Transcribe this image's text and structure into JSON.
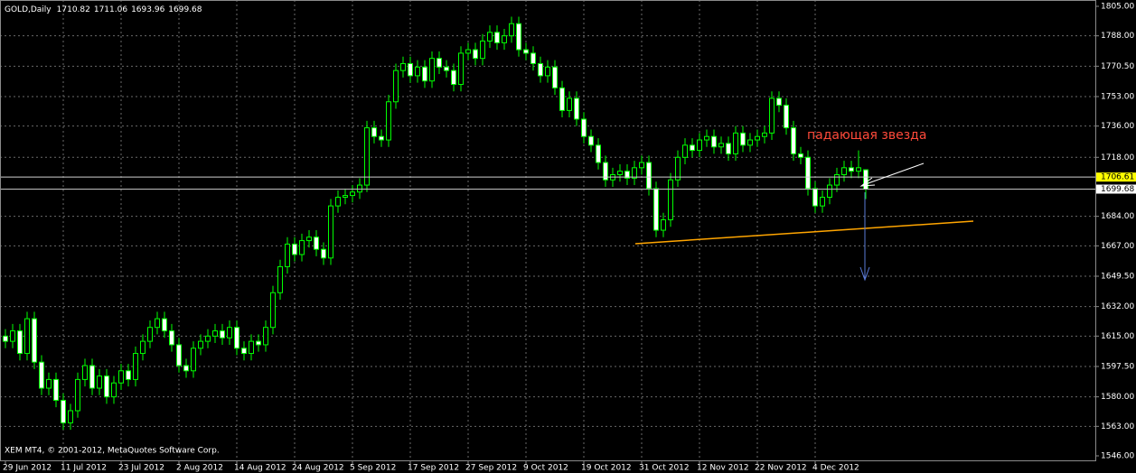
{
  "chart_data": {
    "type": "candlestick",
    "symbol": "GOLD,Daily",
    "copyright": "XEM MT4, © 2001-2012, MetaQuotes Software Corp.",
    "annotation": "падающая звезда",
    "categories": [
      "29 Jun 2012",
      null,
      null,
      null,
      null,
      null,
      null,
      null,
      "11 Jul 2012",
      null,
      null,
      null,
      null,
      null,
      null,
      null,
      "23 Jul 2012",
      null,
      null,
      null,
      null,
      null,
      null,
      null,
      "2 Aug 2012",
      null,
      null,
      null,
      null,
      null,
      null,
      null,
      "14 Aug 2012",
      null,
      null,
      null,
      null,
      null,
      null,
      null,
      "24 Aug 2012",
      null,
      null,
      null,
      null,
      null,
      null,
      null,
      "5 Sep 2012",
      null,
      null,
      null,
      null,
      null,
      null,
      null,
      "17 Sep 2012",
      null,
      null,
      null,
      null,
      null,
      null,
      null,
      "27 Sep 2012",
      null,
      null,
      null,
      null,
      null,
      null,
      null,
      "9 Oct 2012",
      null,
      null,
      null,
      null,
      null,
      null,
      null,
      "19 Oct 2012",
      null,
      null,
      null,
      null,
      null,
      null,
      null,
      "31 Oct 2012",
      null,
      null,
      null,
      null,
      null,
      null,
      null,
      "12 Nov 2012",
      null,
      null,
      null,
      null,
      null,
      null,
      null,
      "22 Nov 2012",
      null,
      null,
      null,
      null,
      null,
      null,
      null,
      "4 Dec 2012",
      null,
      null,
      null,
      null,
      null,
      null,
      null
    ],
    "open": [
      1615,
      1612,
      1618,
      1605,
      1625,
      1600,
      1585,
      1590,
      1578,
      1565,
      1572,
      1590,
      1598,
      1585,
      1592,
      1580,
      1588,
      1595,
      1590,
      1605,
      1612,
      1620,
      1625,
      1618,
      1610,
      1598,
      1595,
      1608,
      1612,
      1615,
      1618,
      1614,
      1620,
      1608,
      1605,
      1612,
      1610,
      1620,
      1640,
      1655,
      1668,
      1662,
      1670,
      1672,
      1665,
      1660,
      1690,
      1695,
      1696,
      1698,
      1702,
      1735,
      1730,
      1728,
      1750,
      1768,
      1772,
      1765,
      1770,
      1762,
      1775,
      1770,
      1768,
      1760,
      1778,
      1780,
      1775,
      1785,
      1790,
      1784,
      1788,
      1795,
      1780,
      1778,
      1772,
      1765,
      1770,
      1758,
      1745,
      1752,
      1740,
      1730,
      1725,
      1715,
      1705,
      1708,
      1710,
      1706,
      1712,
      1715,
      1700,
      1676,
      1682,
      1705,
      1718,
      1725,
      1722,
      1728,
      1730,
      1724,
      1726,
      1720,
      1732,
      1725,
      1728,
      1730,
      1732,
      1752,
      1748,
      1735,
      1720,
      1718,
      1700,
      1690,
      1695,
      1702,
      1708,
      1712,
      1710,
      1710.82
    ],
    "high": [
      1619,
      1622,
      1622,
      1629,
      1629,
      1604,
      1594,
      1594,
      1582,
      1576,
      1594,
      1602,
      1602,
      1596,
      1596,
      1592,
      1599,
      1599,
      1609,
      1616,
      1624,
      1629,
      1629,
      1622,
      1614,
      1602,
      1612,
      1616,
      1619,
      1622,
      1622,
      1624,
      1624,
      1612,
      1616,
      1616,
      1624,
      1644,
      1659,
      1672,
      1672,
      1674,
      1676,
      1676,
      1669,
      1694,
      1699,
      1700,
      1702,
      1706,
      1739,
      1739,
      1734,
      1754,
      1772,
      1776,
      1776,
      1774,
      1774,
      1779,
      1779,
      1774,
      1772,
      1782,
      1784,
      1784,
      1789,
      1794,
      1794,
      1792,
      1799,
      1799,
      1784,
      1782,
      1776,
      1774,
      1774,
      1762,
      1756,
      1756,
      1744,
      1734,
      1729,
      1719,
      1712,
      1714,
      1714,
      1716,
      1719,
      1719,
      1704,
      1686,
      1709,
      1722,
      1729,
      1729,
      1732,
      1734,
      1734,
      1730,
      1730,
      1736,
      1736,
      1732,
      1734,
      1736,
      1756,
      1756,
      1752,
      1739,
      1724,
      1722,
      1704,
      1699,
      1706,
      1712,
      1716,
      1716,
      1722,
      1711.06
    ],
    "low": [
      1608,
      1608,
      1601,
      1601,
      1596,
      1581,
      1581,
      1574,
      1561,
      1561,
      1568,
      1586,
      1581,
      1581,
      1576,
      1576,
      1584,
      1586,
      1586,
      1601,
      1608,
      1616,
      1614,
      1606,
      1594,
      1591,
      1591,
      1604,
      1608,
      1611,
      1610,
      1610,
      1604,
      1601,
      1601,
      1606,
      1606,
      1616,
      1636,
      1651,
      1658,
      1658,
      1666,
      1661,
      1656,
      1656,
      1686,
      1691,
      1692,
      1694,
      1698,
      1726,
      1724,
      1724,
      1746,
      1764,
      1761,
      1761,
      1758,
      1758,
      1766,
      1764,
      1756,
      1756,
      1774,
      1771,
      1771,
      1781,
      1780,
      1780,
      1784,
      1776,
      1774,
      1768,
      1761,
      1761,
      1754,
      1741,
      1741,
      1736,
      1726,
      1721,
      1711,
      1701,
      1701,
      1704,
      1702,
      1702,
      1708,
      1696,
      1672,
      1672,
      1678,
      1701,
      1714,
      1718,
      1718,
      1724,
      1720,
      1720,
      1716,
      1716,
      1721,
      1721,
      1724,
      1726,
      1728,
      1744,
      1731,
      1716,
      1714,
      1696,
      1686,
      1686,
      1691,
      1698,
      1704,
      1706,
      1706,
      1693.96
    ],
    "close": [
      1612,
      1618,
      1605,
      1625,
      1600,
      1585,
      1590,
      1578,
      1565,
      1572,
      1590,
      1598,
      1585,
      1592,
      1580,
      1588,
      1595,
      1590,
      1605,
      1612,
      1620,
      1625,
      1618,
      1610,
      1598,
      1595,
      1608,
      1612,
      1615,
      1618,
      1614,
      1620,
      1608,
      1605,
      1612,
      1610,
      1620,
      1640,
      1655,
      1668,
      1662,
      1670,
      1672,
      1665,
      1660,
      1690,
      1695,
      1696,
      1698,
      1702,
      1735,
      1730,
      1728,
      1750,
      1768,
      1772,
      1765,
      1770,
      1762,
      1775,
      1770,
      1768,
      1760,
      1778,
      1780,
      1775,
      1785,
      1790,
      1784,
      1788,
      1795,
      1780,
      1778,
      1772,
      1765,
      1770,
      1758,
      1745,
      1752,
      1740,
      1730,
      1725,
      1715,
      1705,
      1708,
      1710,
      1706,
      1712,
      1715,
      1700,
      1676,
      1682,
      1705,
      1718,
      1725,
      1722,
      1728,
      1730,
      1724,
      1726,
      1720,
      1732,
      1725,
      1728,
      1730,
      1732,
      1752,
      1748,
      1735,
      1720,
      1718,
      1700,
      1690,
      1695,
      1702,
      1708,
      1712,
      1710,
      1712,
      1699.68
    ],
    "level_line": 1706.61,
    "ylim": [
      1546,
      1805
    ],
    "yticks": [
      {
        "value": 1805,
        "label": "1805.00"
      },
      {
        "value": 1788,
        "label": "1788.00"
      },
      {
        "value": 1770.5,
        "label": "1770.50"
      },
      {
        "value": 1753,
        "label": "1753.00"
      },
      {
        "value": 1736,
        "label": "1736.00"
      },
      {
        "value": 1718,
        "label": "1718.00"
      },
      {
        "value": 1684,
        "label": "1684.00"
      },
      {
        "value": 1667,
        "label": "1667.00"
      },
      {
        "value": 1649.5,
        "label": "1649.50"
      },
      {
        "value": 1632,
        "label": "1632.00"
      },
      {
        "value": 1615,
        "label": "1615.00"
      },
      {
        "value": 1597.5,
        "label": "1597.50"
      },
      {
        "value": 1580,
        "label": "1580.00"
      },
      {
        "value": 1563,
        "label": "1563.00"
      },
      {
        "value": 1546,
        "label": "1546.00"
      }
    ],
    "grid": true,
    "up_fill": "#000000",
    "down_fill": "#ffffff",
    "wick_color": "#00ff00"
  }
}
